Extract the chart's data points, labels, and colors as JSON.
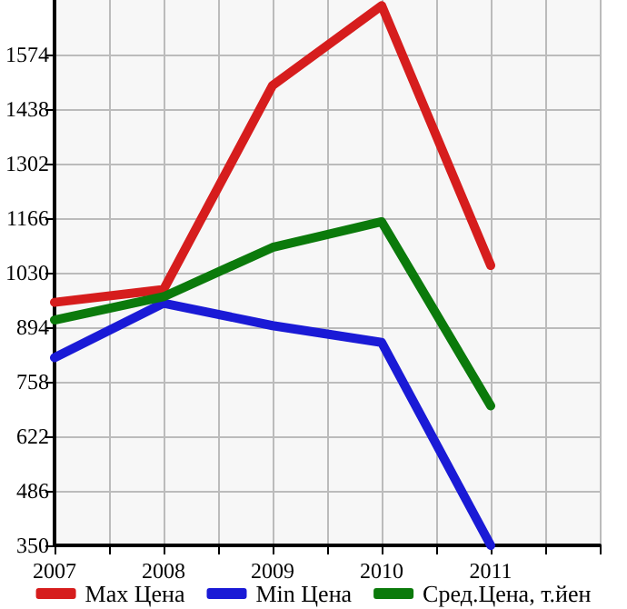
{
  "chart_data": {
    "type": "line",
    "x": [
      2007,
      2008,
      2009,
      2010,
      2011
    ],
    "series": [
      {
        "name": "Max Цена",
        "color": "#d61d1d",
        "values": [
          956,
          988,
          1497,
          1696,
          1048
        ]
      },
      {
        "name": "Min Цена",
        "color": "#1a1ad6",
        "values": [
          818,
          954,
          898,
          856,
          350
        ]
      },
      {
        "name": "Сред.Цена, т.йен",
        "color": "#0b7a0b",
        "values": [
          912,
          970,
          1093,
          1157,
          698
        ]
      }
    ],
    "xlim": [
      2007,
      2012
    ],
    "xticks": [
      2007,
      {
        "value": 2007.5,
        "label": null
      },
      2008,
      {
        "value": 2008.5,
        "label": null
      },
      2009,
      {
        "value": 2009.5,
        "label": null
      },
      2010,
      {
        "value": 2010.5,
        "label": null
      },
      2011,
      {
        "value": 2011.5,
        "label": null
      },
      {
        "value": 2012,
        "label": null
      }
    ],
    "ylim": [
      350,
      1710
    ],
    "yticks": [
      350,
      486,
      622,
      758,
      894,
      1030,
      1166,
      1302,
      1438,
      1574
    ],
    "grid": true,
    "legend": "bottom",
    "marker": "none",
    "line_style": "solid"
  }
}
